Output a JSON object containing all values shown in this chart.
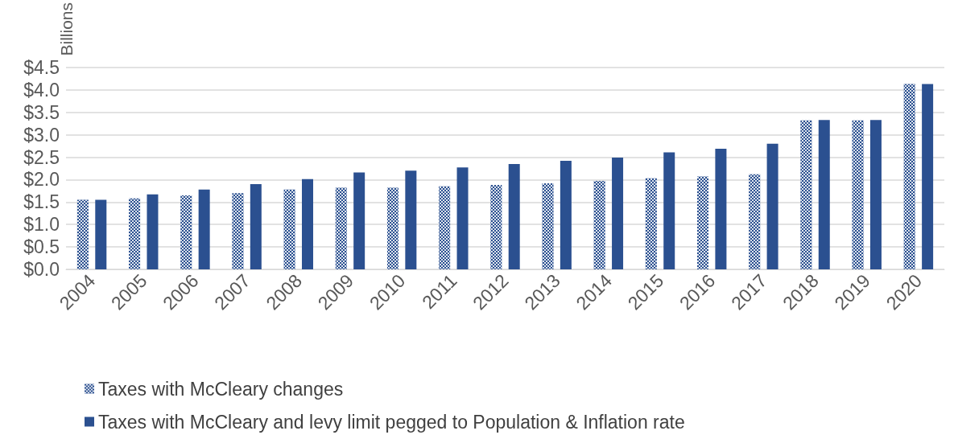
{
  "chart_data": {
    "type": "bar",
    "ylabel": "Billions",
    "categories": [
      "2004",
      "2005",
      "2006",
      "2007",
      "2008",
      "2009",
      "2010",
      "2011",
      "2012",
      "2013",
      "2014",
      "2015",
      "2016",
      "2017",
      "2018",
      "2019",
      "2020"
    ],
    "series": [
      {
        "name": "Taxes with McCleary changes",
        "color": "#2b5090",
        "values": [
          1.55,
          1.58,
          1.65,
          1.7,
          1.78,
          1.82,
          1.82,
          1.85,
          1.88,
          1.92,
          1.97,
          2.03,
          2.07,
          2.12,
          3.32,
          3.32,
          4.13
        ]
      },
      {
        "name": "Taxes with McCleary and levy limit pegged to Population & Inflation rate",
        "color": "#2b5090",
        "values": [
          1.55,
          1.67,
          1.78,
          1.9,
          2.01,
          2.16,
          2.2,
          2.27,
          2.35,
          2.42,
          2.49,
          2.61,
          2.69,
          2.8,
          3.33,
          3.33,
          4.13
        ]
      }
    ],
    "ylim": [
      0,
      4.5
    ],
    "yticks": [
      {
        "value": 0,
        "label": "$0.0"
      },
      {
        "value": 0.5,
        "label": "$0.5"
      },
      {
        "value": 1,
        "label": "$1.0"
      },
      {
        "value": 1.5,
        "label": "$1.5"
      },
      {
        "value": 2,
        "label": "$2.0"
      },
      {
        "value": 2.5,
        "label": "$2.5"
      },
      {
        "value": 3,
        "label": "$3.0"
      },
      {
        "value": 3.5,
        "label": "$3.5"
      },
      {
        "value": 4,
        "label": "$4.0"
      },
      {
        "value": 4.5,
        "label": "$4.5"
      }
    ],
    "grid": "y",
    "legend": "bottom"
  }
}
